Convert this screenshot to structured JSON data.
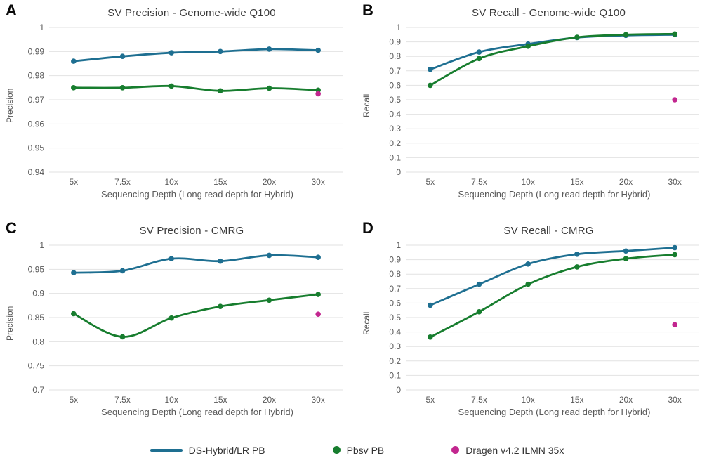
{
  "colors": {
    "blue": "#1e6f91",
    "green": "#177d2e",
    "magenta": "#c2268f",
    "grid": "#e2e2e2",
    "axis_text": "#595959",
    "title_text": "#3b3b3b",
    "panel_letter": "#0a0a0a"
  },
  "legend": {
    "items": [
      {
        "label": "DS-Hybrid/LR PB",
        "color": "#1e6f91",
        "marker": "line"
      },
      {
        "label": "Pbsv PB",
        "color": "#177d2e",
        "marker": "dot"
      },
      {
        "label": "Dragen v4.2 ILMN 35x",
        "color": "#c2268f",
        "marker": "dot"
      }
    ]
  },
  "chart_data": [
    {
      "panel_label": "A",
      "type": "line",
      "title": "SV Precision - Genome-wide Q100",
      "xlabel": "Sequencing Depth (Long read depth for Hybrid)",
      "ylabel": "Precision",
      "categories": [
        "5x",
        "7.5x",
        "10x",
        "15x",
        "20x",
        "30x"
      ],
      "ylim": [
        0.94,
        1.0
      ],
      "yticks": [
        "1",
        "0.99",
        "0.98",
        "0.97",
        "0.96",
        "0.95",
        "0.94"
      ],
      "grid": true,
      "series": [
        {
          "name": "DS-Hybrid/LR PB",
          "color": "#1e6f91",
          "values": [
            0.986,
            0.988,
            0.9895,
            0.99,
            0.991,
            0.9905
          ]
        },
        {
          "name": "Pbsv PB",
          "color": "#177d2e",
          "values": [
            0.975,
            0.975,
            0.9757,
            0.9737,
            0.9748,
            0.974
          ]
        }
      ],
      "points": [
        {
          "name": "Dragen v4.2 ILMN 35x",
          "color": "#c2268f",
          "x": "30x",
          "y": 0.9725
        }
      ]
    },
    {
      "panel_label": "B",
      "type": "line",
      "title": "SV Recall - Genome-wide Q100",
      "xlabel": "Sequencing Depth (Long read depth for Hybrid)",
      "ylabel": "Recall",
      "categories": [
        "5x",
        "7.5x",
        "10x",
        "15x",
        "20x",
        "30x"
      ],
      "ylim": [
        0,
        1.0
      ],
      "yticks": [
        "1",
        "0.9",
        "0.8",
        "0.7",
        "0.6",
        "0.5",
        "0.4",
        "0.3",
        "0.2",
        "0.1",
        "0"
      ],
      "grid": true,
      "series": [
        {
          "name": "DS-Hybrid/LR PB",
          "color": "#1e6f91",
          "values": [
            0.71,
            0.83,
            0.885,
            0.93,
            0.945,
            0.95
          ]
        },
        {
          "name": "Pbsv PB",
          "color": "#177d2e",
          "values": [
            0.6,
            0.785,
            0.87,
            0.932,
            0.95,
            0.955
          ]
        }
      ],
      "points": [
        {
          "name": "Dragen v4.2 ILMN 35x",
          "color": "#c2268f",
          "x": "30x",
          "y": 0.5
        }
      ]
    },
    {
      "panel_label": "C",
      "type": "line",
      "title": "SV Precision - CMRG",
      "xlabel": "Sequencing Depth (Long read depth for Hybrid)",
      "ylabel": "Precision",
      "categories": [
        "5x",
        "7.5x",
        "10x",
        "15x",
        "20x",
        "30x"
      ],
      "ylim": [
        0.7,
        1.0
      ],
      "yticks": [
        "1",
        "0.95",
        "0.9",
        "0.85",
        "0.8",
        "0.75",
        "0.7"
      ],
      "grid": true,
      "series": [
        {
          "name": "DS-Hybrid/LR PB",
          "color": "#1e6f91",
          "values": [
            0.943,
            0.947,
            0.972,
            0.967,
            0.979,
            0.975
          ]
        },
        {
          "name": "Pbsv PB",
          "color": "#177d2e",
          "values": [
            0.858,
            0.81,
            0.849,
            0.873,
            0.886,
            0.898
          ]
        }
      ],
      "points": [
        {
          "name": "Dragen v4.2 ILMN 35x",
          "color": "#c2268f",
          "x": "30x",
          "y": 0.857
        }
      ]
    },
    {
      "panel_label": "D",
      "type": "line",
      "title": "SV Recall - CMRG",
      "xlabel": "Sequencing Depth (Long read depth for Hybrid)",
      "ylabel": "Recall",
      "categories": [
        "5x",
        "7.5x",
        "10x",
        "15x",
        "20x",
        "30x"
      ],
      "ylim": [
        0,
        1.0
      ],
      "yticks": [
        "1",
        "0.9",
        "0.8",
        "0.7",
        "0.6",
        "0.5",
        "0.4",
        "0.3",
        "0.2",
        "0.1",
        "0"
      ],
      "grid": true,
      "series": [
        {
          "name": "DS-Hybrid/LR PB",
          "color": "#1e6f91",
          "values": [
            0.585,
            0.73,
            0.87,
            0.938,
            0.96,
            0.983
          ]
        },
        {
          "name": "Pbsv PB",
          "color": "#177d2e",
          "values": [
            0.365,
            0.54,
            0.73,
            0.85,
            0.907,
            0.935
          ]
        }
      ],
      "points": [
        {
          "name": "Dragen v4.2 ILMN 35x",
          "color": "#c2268f",
          "x": "30x",
          "y": 0.45
        }
      ]
    }
  ]
}
